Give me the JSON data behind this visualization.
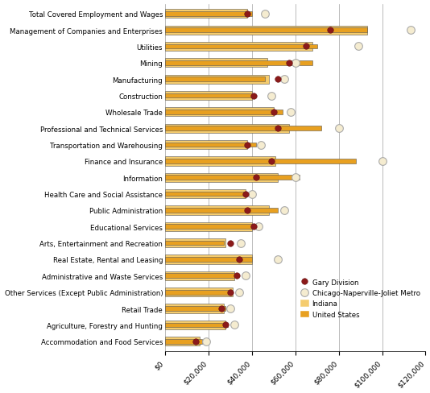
{
  "categories": [
    "Total Covered Employment and Wages",
    "Management of Companies and Enterprises",
    "Utilities",
    "Mining",
    "Manufacturing",
    "Construction",
    "Wholesale Trade",
    "Professional and Technical Services",
    "Transportation and Warehousing",
    "Finance and Insurance",
    "Information",
    "Health Care and Social Assistance",
    "Public Administration",
    "Educational Services",
    "Arts, Entertainment and Recreation",
    "Real Estate, Rental and Leasing",
    "Administrative and Waste Services",
    "Other Services (Except Public Administration)",
    "Retail Trade",
    "Agriculture, Forestry and Hunting",
    "Accommodation and Food Services"
  ],
  "indiana": [
    38000,
    93000,
    68000,
    47000,
    48000,
    40000,
    50000,
    57000,
    38000,
    51000,
    52000,
    37000,
    48000,
    40000,
    28000,
    40000,
    32000,
    31000,
    27000,
    28000,
    16000
  ],
  "us": [
    40000,
    93000,
    70000,
    68000,
    46000,
    41000,
    54000,
    72000,
    42000,
    88000,
    62000,
    37000,
    52000,
    43000,
    27000,
    40000,
    32000,
    30000,
    28000,
    29000,
    17000
  ],
  "gary": [
    38000,
    76000,
    65000,
    57000,
    52000,
    41000,
    50000,
    52000,
    38000,
    49000,
    42000,
    37000,
    38000,
    41000,
    30000,
    34000,
    33000,
    30000,
    26000,
    28000,
    14000
  ],
  "chicago": [
    46000,
    113000,
    89000,
    60000,
    55000,
    49000,
    58000,
    80000,
    44000,
    100000,
    60000,
    40000,
    55000,
    43000,
    35000,
    52000,
    37000,
    34000,
    30000,
    32000,
    19000
  ],
  "indiana_color": "#F5CC6E",
  "us_color": "#E8A020",
  "gary_color": "#8B1A1A",
  "chicago_color": "#F5ECD0",
  "chicago_edge_color": "#AAAAAA",
  "xlim": [
    0,
    120000
  ],
  "xticks": [
    0,
    20000,
    40000,
    60000,
    80000,
    100000,
    120000
  ],
  "indiana_bar_height": 0.55,
  "us_bar_height": 0.28,
  "figsize": [
    5.34,
    4.89
  ],
  "dpi": 100
}
